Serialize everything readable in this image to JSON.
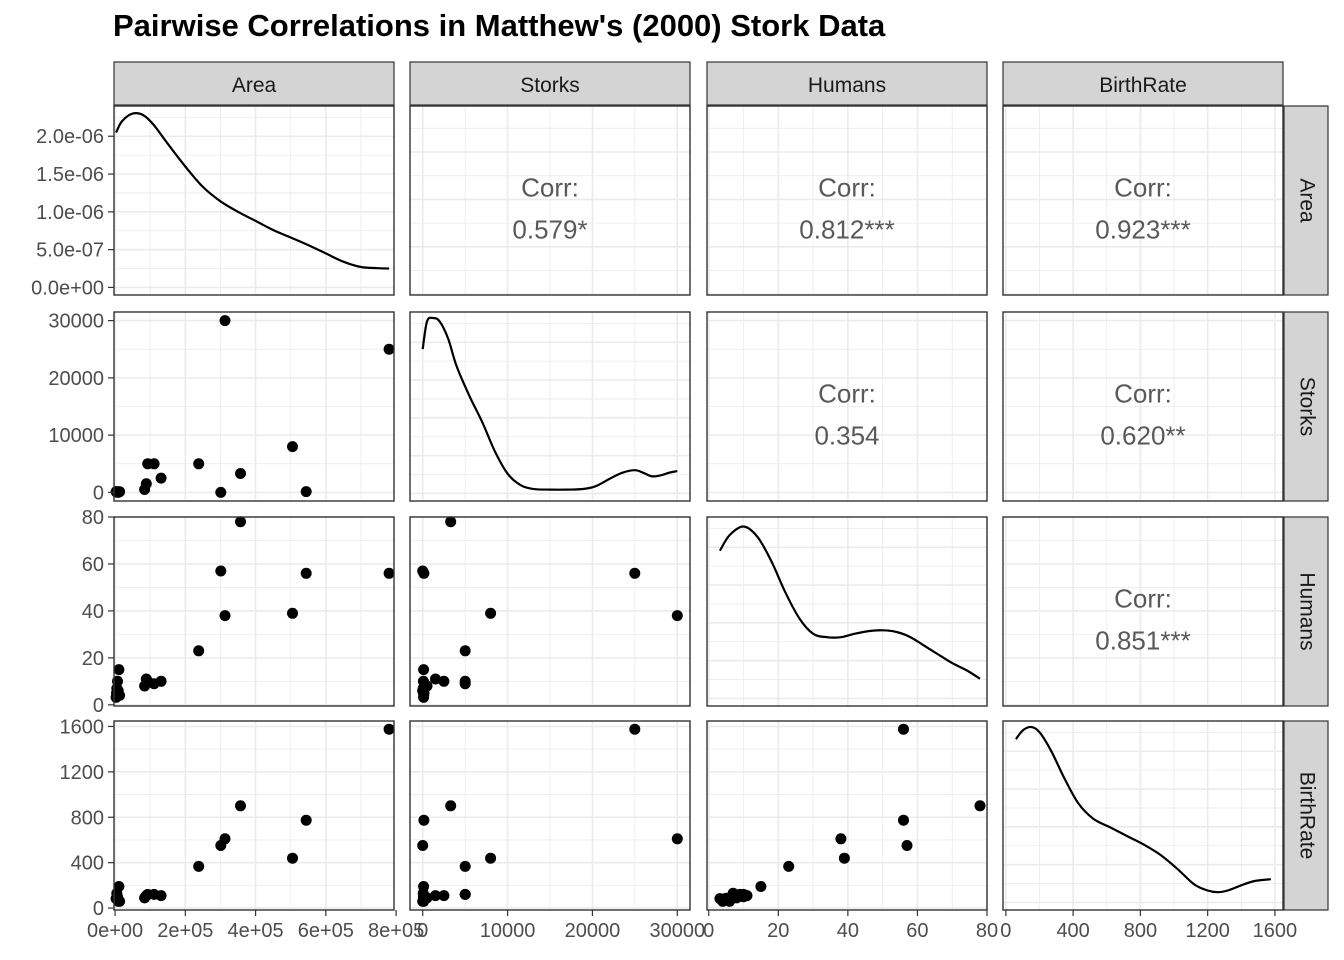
{
  "title": "Pairwise Correlations in Matthew's (2000) Stork Data",
  "colors": {
    "strip_fill": "#d4d4d4",
    "panel_border": "#333333",
    "grid": "#ebebeb",
    "point": "#000000",
    "corr_text": "#595959",
    "tick_text": "#4d4d4d"
  },
  "chart_data": {
    "type": "scatter",
    "subtype": "pairs-plot (scatterplot matrix)",
    "variables": [
      "Area",
      "Storks",
      "Humans",
      "BirthRate"
    ],
    "axes": {
      "Area": {
        "range": [
          -3000,
          794000
        ],
        "ticks": [
          0,
          200000,
          400000,
          600000,
          800000
        ],
        "tick_labels": [
          "0e+00",
          "2e+05",
          "4e+05",
          "6e+05",
          "8e+05"
        ]
      },
      "Storks": {
        "range": [
          -1500,
          31500
        ],
        "ticks": [
          0,
          10000,
          20000,
          30000
        ],
        "tick_labels": [
          "0",
          "10000",
          "20000",
          "30000"
        ]
      },
      "Humans": {
        "range": [
          -0.5,
          80
        ],
        "ticks": [
          0,
          20,
          40,
          60,
          80
        ],
        "tick_labels": [
          "0",
          "20",
          "40",
          "60",
          "80"
        ]
      },
      "BirthRate": {
        "range": [
          -17,
          1648
        ],
        "ticks": [
          0,
          400,
          800,
          1200,
          1600
        ],
        "tick_labels": [
          "0",
          "400",
          "800",
          "1200",
          "1600"
        ]
      }
    },
    "density_y_axis": {
      "range": [
        -1e-07,
        2.4e-06
      ],
      "ticks": [
        0,
        5e-07,
        1e-06,
        1.5e-06,
        2e-06
      ],
      "tick_labels": [
        "0.0e+00",
        "5.0e-07",
        "1.0e-06",
        "1.5e-06",
        "2.0e-06"
      ]
    },
    "observations": [
      {
        "Area": 3000,
        "Storks": 100,
        "Humans": 3.2,
        "BirthRate": 83
      },
      {
        "Area": 4000,
        "Storks": 150,
        "Humans": 5,
        "BirthRate": 87
      },
      {
        "Area": 5000,
        "Storks": 50,
        "Humans": 7,
        "BirthRate": 130
      },
      {
        "Area": 7000,
        "Storks": 80,
        "Humans": 10,
        "BirthRate": 100
      },
      {
        "Area": 9000,
        "Storks": 0,
        "Humans": 6,
        "BirthRate": 60
      },
      {
        "Area": 11000,
        "Storks": 100,
        "Humans": 15,
        "BirthRate": 190
      },
      {
        "Area": 13000,
        "Storks": 120,
        "Humans": 4,
        "BirthRate": 60
      },
      {
        "Area": 84000,
        "Storks": 500,
        "Humans": 8,
        "BirthRate": 90
      },
      {
        "Area": 89000,
        "Storks": 1500,
        "Humans": 11,
        "BirthRate": 110
      },
      {
        "Area": 93000,
        "Storks": 5000,
        "Humans": 10,
        "BirthRate": 120
      },
      {
        "Area": 111000,
        "Storks": 5000,
        "Humans": 9,
        "BirthRate": 120
      },
      {
        "Area": 131000,
        "Storks": 2500,
        "Humans": 10,
        "BirthRate": 110
      },
      {
        "Area": 238000,
        "Storks": 5000,
        "Humans": 23,
        "BirthRate": 367
      },
      {
        "Area": 301000,
        "Storks": 0,
        "Humans": 57,
        "BirthRate": 551
      },
      {
        "Area": 313000,
        "Storks": 30000,
        "Humans": 38,
        "BirthRate": 610
      },
      {
        "Area": 357000,
        "Storks": 3300,
        "Humans": 78,
        "BirthRate": 901
      },
      {
        "Area": 505000,
        "Storks": 8000,
        "Humans": 39,
        "BirthRate": 439
      },
      {
        "Area": 544000,
        "Storks": 140,
        "Humans": 56,
        "BirthRate": 774
      },
      {
        "Area": 780000,
        "Storks": 25000,
        "Humans": 56,
        "BirthRate": 1576
      }
    ],
    "densities": {
      "Area": {
        "x": [
          3000,
          20000,
          50000,
          80000,
          110000,
          150000,
          200000,
          250000,
          300000,
          350000,
          400000,
          450000,
          500000,
          550000,
          600000,
          650000,
          700000,
          750000,
          780000
        ],
        "y": [
          2.05e-06,
          2.2e-06,
          2.3e-06,
          2.28e-06,
          2.15e-06,
          1.9e-06,
          1.6e-06,
          1.33e-06,
          1.14e-06,
          1e-06,
          8.8e-07,
          7.6e-07,
          6.6e-07,
          5.6e-07,
          4.5e-07,
          3.4e-07,
          2.7e-07,
          2.55e-07,
          2.5e-07
        ]
      },
      "Storks": {
        "x": [
          0,
          500,
          1200,
          2000,
          3000,
          4000,
          5500,
          7000,
          8500,
          10000,
          11500,
          13000,
          15000,
          17000,
          19000,
          20500,
          22000,
          23500,
          25000,
          26000,
          27000,
          28000,
          29000,
          30000
        ],
        "y": [
          0.82,
          0.98,
          1.0,
          0.98,
          0.88,
          0.72,
          0.55,
          0.4,
          0.23,
          0.1,
          0.035,
          0.012,
          0.008,
          0.008,
          0.012,
          0.03,
          0.07,
          0.105,
          0.12,
          0.105,
          0.085,
          0.09,
          0.105,
          0.115
        ]
      },
      "Humans": {
        "x": [
          3.2,
          6,
          10,
          14,
          18,
          22,
          26,
          30,
          34,
          38,
          42,
          46,
          50,
          54,
          58,
          62,
          66,
          70,
          74,
          78
        ],
        "y": [
          0.84,
          0.93,
          0.98,
          0.92,
          0.78,
          0.6,
          0.45,
          0.36,
          0.34,
          0.34,
          0.36,
          0.375,
          0.38,
          0.37,
          0.34,
          0.29,
          0.24,
          0.19,
          0.15,
          0.1
        ]
      },
      "BirthRate": {
        "x": [
          60,
          100,
          150,
          200,
          270,
          350,
          430,
          520,
          620,
          720,
          820,
          920,
          1020,
          1120,
          1200,
          1260,
          1320,
          1400,
          1480,
          1576
        ],
        "y": [
          0.93,
          0.98,
          1.0,
          0.97,
          0.86,
          0.7,
          0.56,
          0.47,
          0.42,
          0.37,
          0.32,
          0.26,
          0.18,
          0.09,
          0.055,
          0.045,
          0.055,
          0.085,
          0.11,
          0.12
        ]
      }
    },
    "correlations": [
      {
        "row": "Area",
        "col": "Storks",
        "label": "Corr:",
        "value": "0.579*"
      },
      {
        "row": "Area",
        "col": "Humans",
        "label": "Corr:",
        "value": "0.812***"
      },
      {
        "row": "Area",
        "col": "BirthRate",
        "label": "Corr:",
        "value": "0.923***"
      },
      {
        "row": "Storks",
        "col": "Humans",
        "label": "Corr:",
        "value": "0.354"
      },
      {
        "row": "Storks",
        "col": "BirthRate",
        "label": "Corr:",
        "value": "0.620**"
      },
      {
        "row": "Humans",
        "col": "BirthRate",
        "label": "Corr:",
        "value": "0.851***"
      }
    ],
    "grid": true,
    "legend": "none"
  }
}
